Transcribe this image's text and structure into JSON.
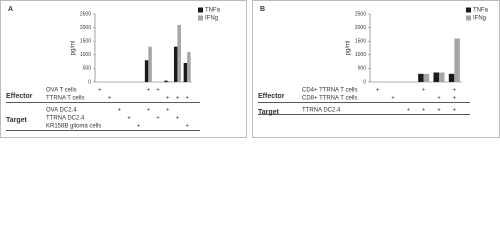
{
  "chart_data": [
    {
      "type": "bar",
      "title": "A",
      "ylabel": "pg/ml",
      "categories": [
        null,
        null,
        null,
        null,
        null,
        null,
        null,
        null,
        null,
        null
      ],
      "series": [
        {
          "name": "TNFa",
          "color": "#1a1a1a",
          "values": [
            0,
            0,
            0,
            0,
            0,
            800,
            0,
            50,
            1300,
            700
          ]
        },
        {
          "name": "IFNg",
          "color": "#a6a6a6",
          "values": [
            0,
            0,
            0,
            0,
            0,
            1300,
            0,
            30,
            2100,
            1100
          ]
        }
      ],
      "ylim": [
        0,
        2500
      ],
      "yticks": [
        0,
        500,
        1000,
        1500,
        2000,
        2500
      ],
      "effector": {
        "label": "Effector",
        "rows": [
          {
            "label": "OVA T cells",
            "cells": [
              "+",
              null,
              null,
              null,
              null,
              "+",
              "+",
              null,
              null,
              null
            ]
          },
          {
            "label": "TTRNA T cells",
            "cells": [
              null,
              "+",
              null,
              null,
              null,
              null,
              null,
              "+",
              "+",
              "+"
            ]
          }
        ]
      },
      "target": {
        "label": "Target",
        "rows": [
          {
            "label": "OVA DC2.4",
            "cells": [
              null,
              null,
              "+",
              null,
              null,
              "+",
              null,
              "+",
              null,
              null
            ]
          },
          {
            "label": "TTRNA DC2.4",
            "cells": [
              null,
              null,
              null,
              "+",
              null,
              null,
              "+",
              null,
              "+",
              null
            ]
          },
          {
            "label": "KR158B glioma cells",
            "cells": [
              null,
              null,
              null,
              null,
              "+",
              null,
              null,
              null,
              null,
              "+"
            ]
          }
        ]
      }
    },
    {
      "type": "bar",
      "title": "B",
      "ylabel": "pg/ml",
      "categories": [
        null,
        null,
        null,
        null,
        null,
        null
      ],
      "series": [
        {
          "name": "TNFa",
          "color": "#1a1a1a",
          "values": [
            0,
            0,
            0,
            300,
            350,
            300
          ]
        },
        {
          "name": "IFNg",
          "color": "#a6a6a6",
          "values": [
            0,
            0,
            0,
            300,
            350,
            1600
          ]
        }
      ],
      "ylim": [
        0,
        2500
      ],
      "yticks": [
        0,
        500,
        1000,
        1500,
        2000,
        2500
      ],
      "effector": {
        "label": "Effector",
        "rows": [
          {
            "label": "CD4+ TTRNA T cells",
            "cells": [
              "+",
              null,
              null,
              "+",
              null,
              "+"
            ]
          },
          {
            "label": "CD8+ TTRNA T cells",
            "cells": [
              null,
              "+",
              null,
              null,
              "+",
              "+"
            ]
          }
        ]
      },
      "target": {
        "label": "Target",
        "rows": [
          {
            "label": "TTRNA DC2.4",
            "cells": [
              null,
              null,
              "+",
              "+",
              "+",
              "+"
            ]
          }
        ]
      }
    }
  ]
}
